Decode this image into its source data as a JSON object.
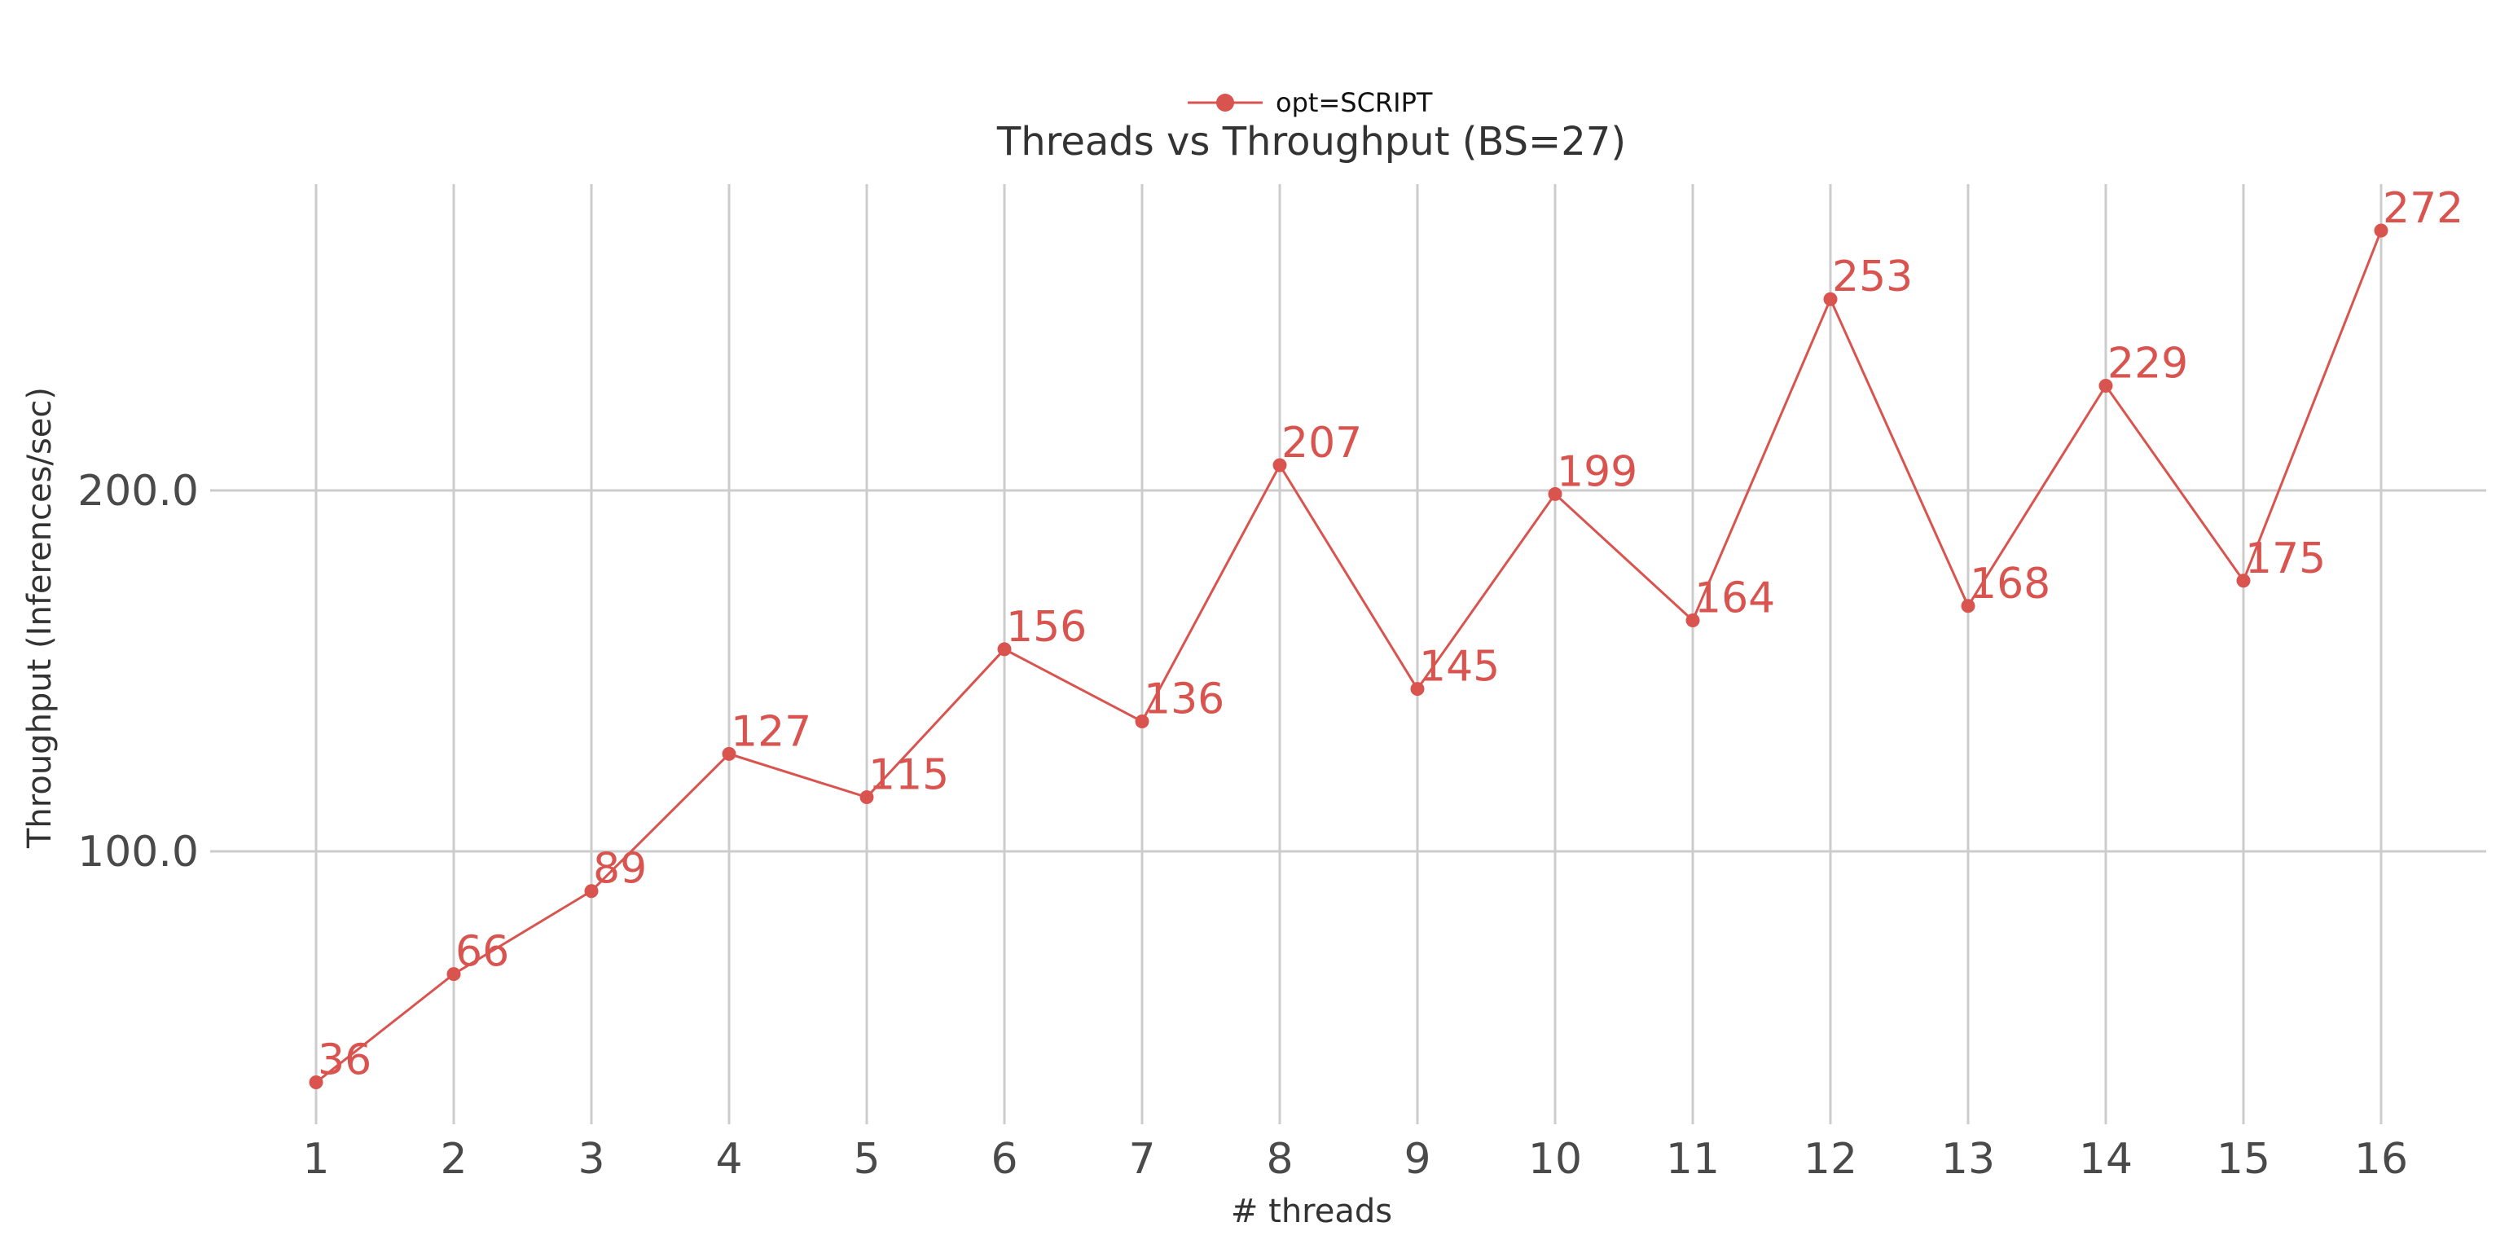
{
  "chart_data": {
    "type": "line",
    "title": "Threads vs Throughput (BS=27)",
    "xlabel": "# threads",
    "ylabel": "Throughput (Inferences/sec)",
    "x": [
      1,
      2,
      3,
      4,
      5,
      6,
      7,
      8,
      9,
      10,
      11,
      12,
      13,
      14,
      15,
      16
    ],
    "x_tick_labels": [
      "1",
      "2",
      "3",
      "4",
      "5",
      "6",
      "7",
      "8",
      "9",
      "10",
      "11",
      "12",
      "13",
      "14",
      "15",
      "16"
    ],
    "y_ticks": [
      100,
      200
    ],
    "y_tick_labels": [
      "100.0",
      "200.0"
    ],
    "ylim": [
      25,
      285
    ],
    "grid": true,
    "legend_position": "top-center",
    "series": [
      {
        "name": "opt=SCRIPT",
        "color": "#d9534f",
        "values": [
          36,
          66,
          89,
          127,
          115,
          156,
          136,
          207,
          145,
          199,
          164,
          253,
          168,
          229,
          175,
          272
        ],
        "data_labels": [
          "36",
          "66",
          "89",
          "127",
          "115",
          "156",
          "136",
          "207",
          "145",
          "199",
          "164",
          "253",
          "168",
          "229",
          "175",
          "272"
        ]
      }
    ]
  }
}
